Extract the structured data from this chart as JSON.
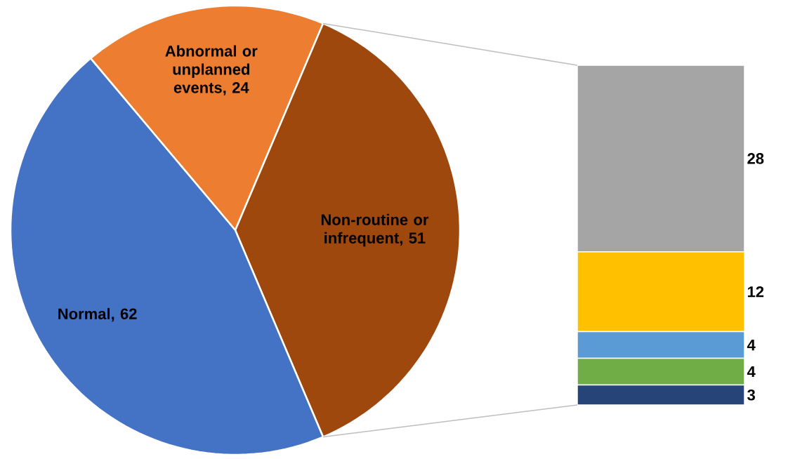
{
  "chart_data": [
    {
      "type": "pie",
      "categories": [
        "Abnormal or unplanned events",
        "Non-routine or infrequent",
        "Normal"
      ],
      "values": [
        24,
        51,
        62
      ],
      "colors": [
        "#ed7d31",
        "#9e480e",
        "#4472c4"
      ],
      "value_labels": [
        ", 24",
        ", 51",
        ", 62"
      ]
    },
    {
      "type": "bar",
      "stacked": true,
      "categories": [
        null
      ],
      "data_labels": true,
      "series": [
        {
          "color": "#264478",
          "values": [
            3
          ]
        },
        {
          "color": "#70ad47",
          "values": [
            4
          ]
        },
        {
          "color": "#5b9bd5",
          "values": [
            4
          ]
        },
        {
          "color": "#ffc000",
          "values": [
            12
          ]
        },
        {
          "color": "#a5a5a5",
          "values": [
            28
          ]
        }
      ]
    }
  ]
}
